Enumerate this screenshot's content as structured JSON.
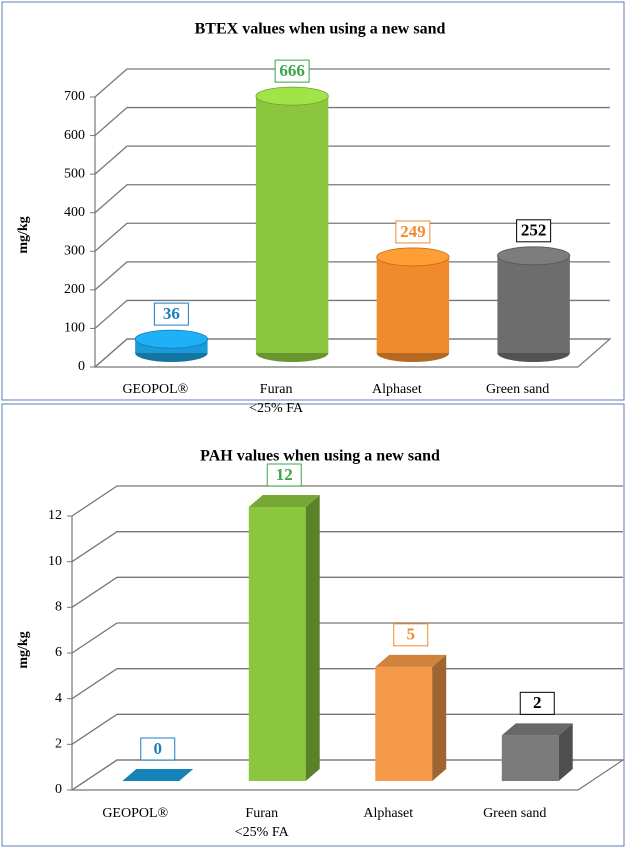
{
  "chart_data": [
    {
      "type": "bar",
      "bar_shape": "cylinder",
      "title": "BTEX values when using a new sand",
      "y_label": "mg/kg",
      "categories": [
        "GEOPOL®",
        "Furan\n<25% FA",
        "Alphaset",
        "Green sand"
      ],
      "values": [
        36,
        666,
        249,
        252
      ],
      "colors": [
        "#1a9ad8",
        "#8cc63f",
        "#f08a2c",
        "#6d6d6d"
      ],
      "label_colors": [
        "#1a7fc0",
        "#3aa54a",
        "#f08a2c",
        "#000000"
      ],
      "ylim": [
        0,
        700
      ],
      "yticks": [
        0,
        100,
        200,
        300,
        400,
        500,
        600,
        700
      ],
      "grid": true
    },
    {
      "type": "bar",
      "bar_shape": "box",
      "title": "PAH values when using a new sand",
      "y_label": "mg/kg",
      "categories": [
        "GEOPOL®",
        "Furan\n<25% FA",
        "Alphaset",
        "Green sand"
      ],
      "values": [
        0,
        12,
        5,
        2
      ],
      "colors": [
        "#1a9ad8",
        "#8cc63f",
        "#f59a48",
        "#7a7a7a"
      ],
      "label_colors": [
        "#1a7fc0",
        "#3aa54a",
        "#f08a2c",
        "#000000"
      ],
      "ylim": [
        0,
        12
      ],
      "yticks": [
        0,
        2,
        4,
        6,
        8,
        10,
        12
      ],
      "grid": true
    }
  ]
}
